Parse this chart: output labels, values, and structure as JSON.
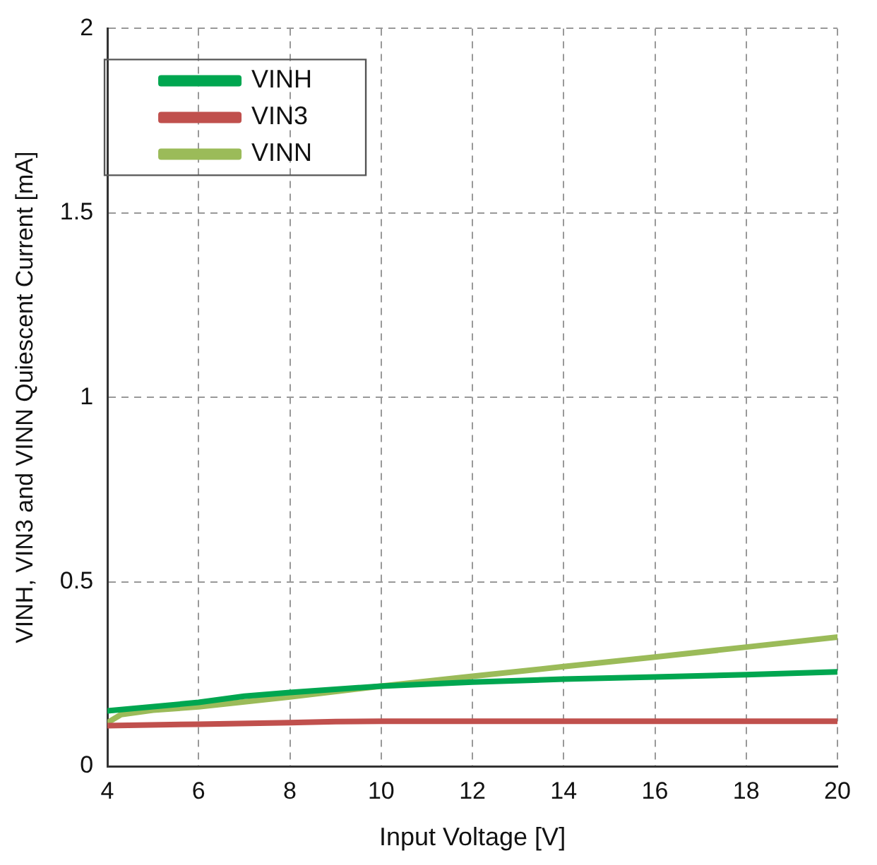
{
  "chart_data": {
    "type": "line",
    "xlabel": "Input Voltage [V]",
    "ylabel": "VINH, VIN3 and VINN Quiescent Current [mA]",
    "xlim": [
      4,
      20
    ],
    "xticks": [
      4,
      6,
      8,
      10,
      12,
      14,
      16,
      18,
      20
    ],
    "ylim": [
      0,
      2
    ],
    "yticks": [
      0,
      0.5,
      1,
      1.5,
      2
    ],
    "grid": true,
    "legend": "top left",
    "marker": "none",
    "line_style": "solid",
    "series": [
      {
        "name": "VINH",
        "color": "#00a650",
        "x": [
          4,
          6,
          7,
          8,
          10,
          12,
          14,
          16,
          18,
          20
        ],
        "values": [
          0.15,
          0.173,
          0.19,
          0.2,
          0.217,
          0.228,
          0.236,
          0.242,
          0.248,
          0.256
        ]
      },
      {
        "name": "VIN3",
        "color": "#c0504d",
        "x": [
          4,
          6,
          8,
          9,
          10,
          12,
          14,
          16,
          18,
          20
        ],
        "values": [
          0.11,
          0.114,
          0.118,
          0.121,
          0.122,
          0.122,
          0.122,
          0.122,
          0.122,
          0.122
        ]
      },
      {
        "name": "VINN",
        "color": "#9bbb59",
        "x": [
          4,
          4.3,
          5,
          6,
          8,
          10,
          12,
          14,
          16,
          18,
          20
        ],
        "values": [
          0.118,
          0.14,
          0.152,
          0.161,
          0.188,
          0.217,
          0.244,
          0.27,
          0.296,
          0.323,
          0.35
        ]
      }
    ]
  }
}
